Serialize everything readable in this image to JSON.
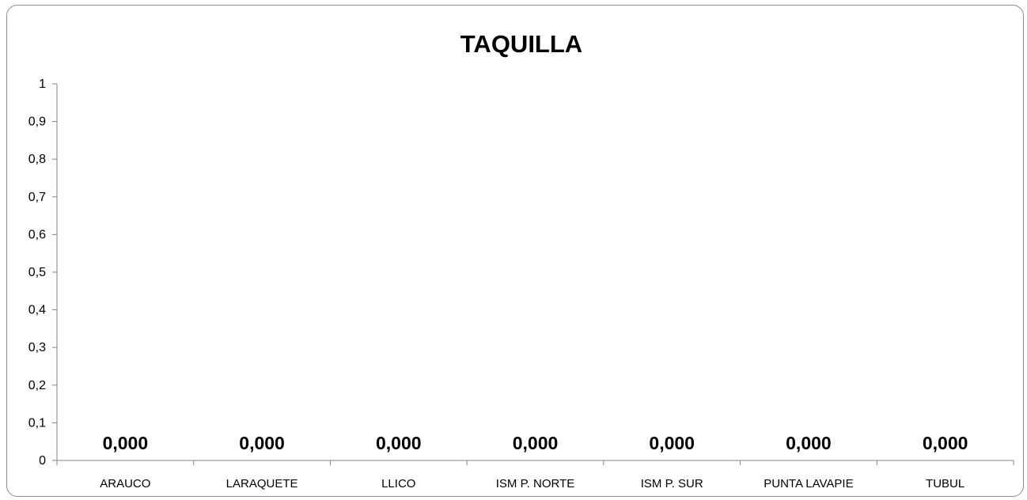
{
  "chart_data": {
    "type": "bar",
    "title": "TAQUILLA",
    "categories": [
      "ARAUCO",
      "LARAQUETE",
      "LLICO",
      "ISM P. NORTE",
      "ISM P. SUR",
      "PUNTA LAVAPIE",
      "TUBUL"
    ],
    "values": [
      0,
      0,
      0,
      0,
      0,
      0,
      0
    ],
    "data_labels": [
      "0,000",
      "0,000",
      "0,000",
      "0,000",
      "0,000",
      "0,000",
      "0,000"
    ],
    "ylim": [
      0,
      1
    ],
    "yticks": [
      "0",
      "0,1",
      "0,2",
      "0,3",
      "0,4",
      "0,5",
      "0,6",
      "0,7",
      "0,8",
      "0,9",
      "1"
    ],
    "grid": false,
    "legend": "none",
    "colors": {
      "bar": "#4f81bd",
      "axis": "#868686",
      "text": "#000000"
    }
  }
}
